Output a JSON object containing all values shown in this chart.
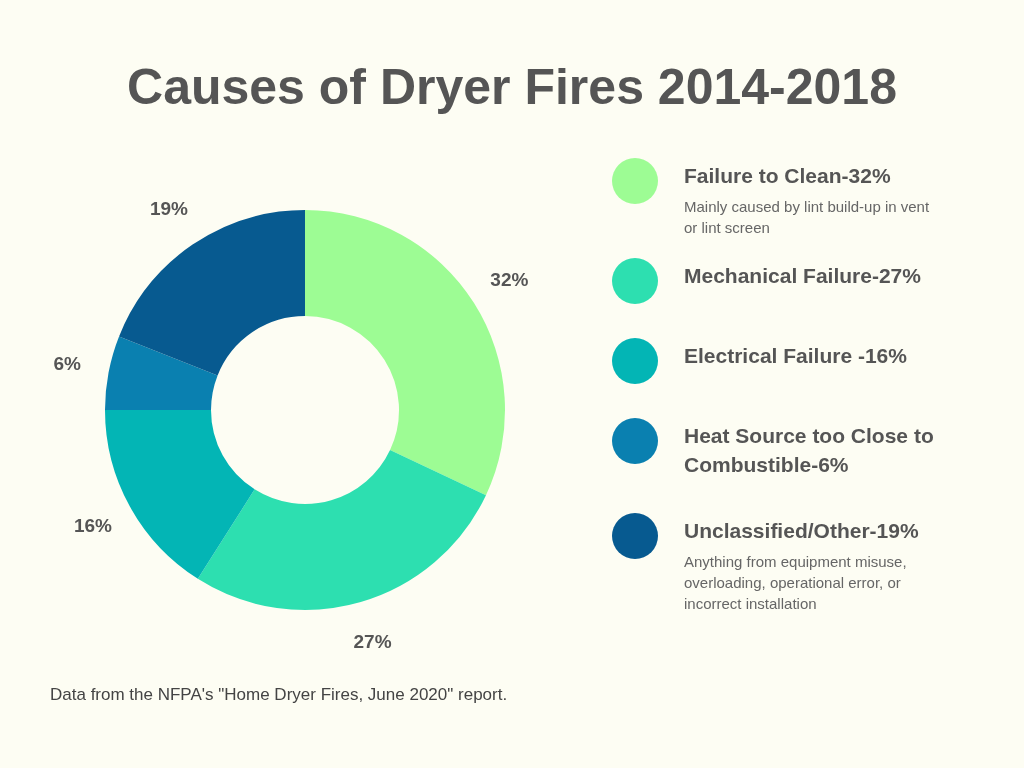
{
  "chart_data": {
    "type": "donut",
    "title": "Causes of Dryer Fires 2014-2018",
    "categories": [
      "Failure to Clean-32%",
      "Mechanical Failure-27%",
      "Electrical Failure -16%",
      "Heat Source too Close to Combustible-6%",
      "Unclassified/Other-19%"
    ],
    "values": [
      32,
      27,
      16,
      6,
      19
    ],
    "colors": [
      "#9dfc94",
      "#2ddfb0",
      "#03b5b5",
      "#0a80b0",
      "#075a90"
    ],
    "value_labels": [
      "32%",
      "27%",
      "16%",
      "6%",
      "19%"
    ],
    "legend": "right",
    "annotations": [
      {
        "text": "Mainly caused by lint build-up in vent or lint screen",
        "x": "Failure to Clean-32%"
      },
      {
        "text": "Anything from equipment misuse, overloading, operational error, or incorrect installation",
        "x": "Unclassified/Other-19%"
      },
      "Data from the NFPA's  \"Home Dryer Fires, June 2020\" report."
    ]
  }
}
